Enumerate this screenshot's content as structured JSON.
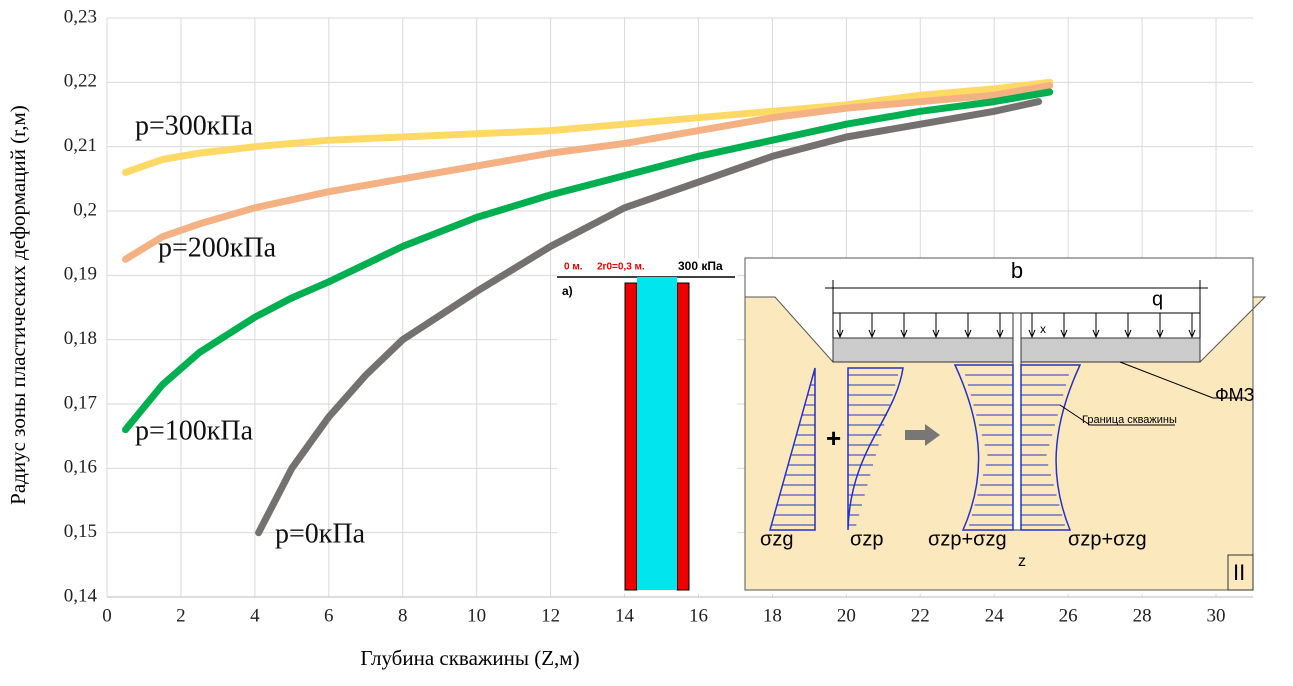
{
  "chart_data": {
    "type": "line",
    "xlabel": "Глубина скважины (Z,м)",
    "ylabel": "Радиус зоны пластических деформаций (r,м)",
    "xlim": [
      0,
      31
    ],
    "xticks": [
      0,
      2,
      4,
      6,
      8,
      10,
      12,
      14,
      16,
      18,
      20,
      22,
      24,
      26,
      28,
      30
    ],
    "ylim": [
      0.14,
      0.23
    ],
    "yticks": [
      {
        "value": 0.14,
        "label": "0,14"
      },
      {
        "value": 0.15,
        "label": "0,15"
      },
      {
        "value": 0.16,
        "label": "0,16"
      },
      {
        "value": 0.17,
        "label": "0,17"
      },
      {
        "value": 0.18,
        "label": "0,18"
      },
      {
        "value": 0.19,
        "label": "0,19"
      },
      {
        "value": 0.2,
        "label": "0,2"
      },
      {
        "value": 0.21,
        "label": "0,21"
      },
      {
        "value": 0.22,
        "label": "0,22"
      },
      {
        "value": 0.23,
        "label": "0,23"
      }
    ],
    "grid": true,
    "series": [
      {
        "name": "p=300кПа",
        "color": "#ffd966",
        "x": [
          0.5,
          1.5,
          2.5,
          4,
          5,
          6,
          8,
          10,
          12,
          14,
          16,
          18,
          20,
          22,
          24,
          25.5
        ],
        "values": [
          0.206,
          0.208,
          0.209,
          0.21,
          0.2105,
          0.211,
          0.2115,
          0.212,
          0.2125,
          0.2135,
          0.2145,
          0.2155,
          0.2165,
          0.218,
          0.219,
          0.22
        ]
      },
      {
        "name": "p=200кПа",
        "color": "#f4b183",
        "x": [
          0.5,
          1.5,
          2.5,
          4,
          6,
          8,
          10,
          12,
          14,
          16,
          18,
          20,
          22,
          24,
          25.5
        ],
        "values": [
          0.1925,
          0.196,
          0.198,
          0.2005,
          0.203,
          0.205,
          0.207,
          0.209,
          0.2105,
          0.2125,
          0.2145,
          0.216,
          0.217,
          0.218,
          0.2195
        ]
      },
      {
        "name": "p=100кПа",
        "color": "#00b050",
        "x": [
          0.5,
          1.5,
          2.5,
          4,
          5,
          6,
          8,
          10,
          12,
          14,
          16,
          18,
          20,
          22,
          24,
          25.5
        ],
        "values": [
          0.166,
          0.173,
          0.178,
          0.1835,
          0.1865,
          0.189,
          0.1945,
          0.199,
          0.2025,
          0.2055,
          0.2085,
          0.211,
          0.2135,
          0.2155,
          0.217,
          0.2185
        ]
      },
      {
        "name": "p=0кПа",
        "color": "#767171",
        "x": [
          4.1,
          5,
          6,
          7,
          8,
          10,
          12,
          14,
          16,
          18,
          20,
          22,
          24,
          25.2
        ],
        "values": [
          0.15,
          0.16,
          0.168,
          0.1745,
          0.18,
          0.1875,
          0.1945,
          0.2005,
          0.2045,
          0.2085,
          0.2115,
          0.2135,
          0.2155,
          0.217
        ]
      }
    ]
  },
  "inset_a": {
    "depth": "0 м.",
    "diameter": "2r0=0,3 м.",
    "pressure": "300 кПа",
    "label": "а)"
  },
  "inset_b": {
    "width": "b",
    "load": "q",
    "offset": "x",
    "foundation": "ФМЗ",
    "boundary": "Граница скважины",
    "sigma_zg": "σzg",
    "sigma_zp": "σzp",
    "sum_left": "σzp+σzg",
    "sum_right": "σzp+σzg",
    "axis": "z",
    "case": "II"
  }
}
